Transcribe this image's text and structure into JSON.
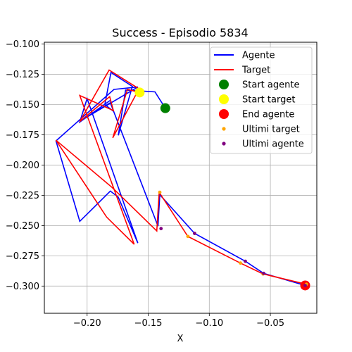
{
  "chart_data": {
    "type": "line",
    "title": "Success - Episodio 5834",
    "xlabel": "X",
    "ylabel": "",
    "xlim": [
      -0.235,
      -0.012
    ],
    "ylim": [
      -0.3225,
      -0.0985
    ],
    "xticks": [
      -0.2,
      -0.15,
      -0.1,
      -0.05
    ],
    "xtick_labels": [
      "−0.20",
      "−0.15",
      "−0.10",
      "−0.05"
    ],
    "yticks": [
      -0.1,
      -0.125,
      -0.15,
      -0.175,
      -0.2,
      -0.225,
      -0.25,
      -0.275,
      -0.3
    ],
    "ytick_labels": [
      "−0.100",
      "−0.125",
      "−0.150",
      "−0.175",
      "−0.200",
      "−0.225",
      "−0.250",
      "−0.275",
      "−0.300"
    ],
    "grid": true,
    "legend_position": "top-right",
    "series": [
      {
        "name": "Agente",
        "kind": "line",
        "color": "#0000ff",
        "x": [
          -0.136,
          -0.1445,
          -0.1685,
          -0.1745,
          -0.163,
          -0.1805,
          -0.1855,
          -0.1785,
          -0.181,
          -0.206,
          -0.2,
          -0.1585,
          -0.1745,
          -0.181,
          -0.206,
          -0.2255,
          -0.178,
          -0.1585,
          -0.2055,
          -0.181,
          -0.142,
          -0.1405,
          -0.112,
          -0.0705,
          -0.0555,
          -0.0215
        ],
        "y": [
          -0.153,
          -0.1395,
          -0.138,
          -0.1755,
          -0.135,
          -0.1235,
          -0.15,
          -0.1555,
          -0.1465,
          -0.1645,
          -0.145,
          -0.2645,
          -0.2265,
          -0.2215,
          -0.2465,
          -0.18,
          -0.1375,
          -0.1355,
          -0.1635,
          -0.1485,
          -0.2505,
          -0.2245,
          -0.2565,
          -0.2795,
          -0.2895,
          -0.2995
        ]
      },
      {
        "name": "Target",
        "kind": "line",
        "color": "#ff0000",
        "x": [
          -0.157,
          -0.167,
          -0.179,
          -0.1575,
          -0.182,
          -0.206,
          -0.1815,
          -0.1785,
          -0.206,
          -0.1615,
          -0.184,
          -0.2255,
          -0.1795,
          -0.143,
          -0.141,
          -0.1175,
          -0.0745,
          -0.056,
          -0.0205
        ],
        "y": [
          -0.14,
          -0.1375,
          -0.1775,
          -0.137,
          -0.1215,
          -0.164,
          -0.1435,
          -0.155,
          -0.1425,
          -0.2655,
          -0.243,
          -0.1795,
          -0.2185,
          -0.2545,
          -0.2225,
          -0.259,
          -0.281,
          -0.29,
          -0.2985
        ]
      }
    ],
    "markers": [
      {
        "name": "Start agente",
        "x": -0.136,
        "y": -0.153,
        "color": "#008000",
        "size": "large"
      },
      {
        "name": "Start target",
        "x": -0.157,
        "y": -0.14,
        "color": "#ffff00",
        "size": "large"
      },
      {
        "name": "End agente",
        "x": -0.0215,
        "y": -0.2995,
        "color": "#ff0000",
        "size": "large"
      },
      {
        "name": "Ultimi target",
        "color": "#ffa500",
        "size": "small",
        "points": [
          [
            -0.1405,
            -0.2225
          ],
          [
            -0.1175,
            -0.259
          ],
          [
            -0.0745,
            -0.281
          ],
          [
            -0.056,
            -0.29
          ],
          [
            -0.0205,
            -0.2985
          ]
        ]
      },
      {
        "name": "Ultimi agente",
        "color": "#800080",
        "size": "small",
        "points": [
          [
            -0.1395,
            -0.2525
          ],
          [
            -0.112,
            -0.2565
          ],
          [
            -0.0705,
            -0.2795
          ],
          [
            -0.0555,
            -0.2895
          ],
          [
            -0.0215,
            -0.2995
          ]
        ]
      }
    ],
    "legend": [
      {
        "label": "Agente",
        "kind": "line",
        "color": "#0000ff"
      },
      {
        "label": "Target",
        "kind": "line",
        "color": "#ff0000"
      },
      {
        "label": "Start agente",
        "kind": "dot-large",
        "color": "#008000"
      },
      {
        "label": "Start target",
        "kind": "dot-large",
        "color": "#ffff00"
      },
      {
        "label": "End agente",
        "kind": "dot-large",
        "color": "#ff0000"
      },
      {
        "label": "Ultimi target",
        "kind": "dot-small",
        "color": "#ffa500"
      },
      {
        "label": "Ultimi agente",
        "kind": "dot-small",
        "color": "#800080"
      }
    ]
  }
}
